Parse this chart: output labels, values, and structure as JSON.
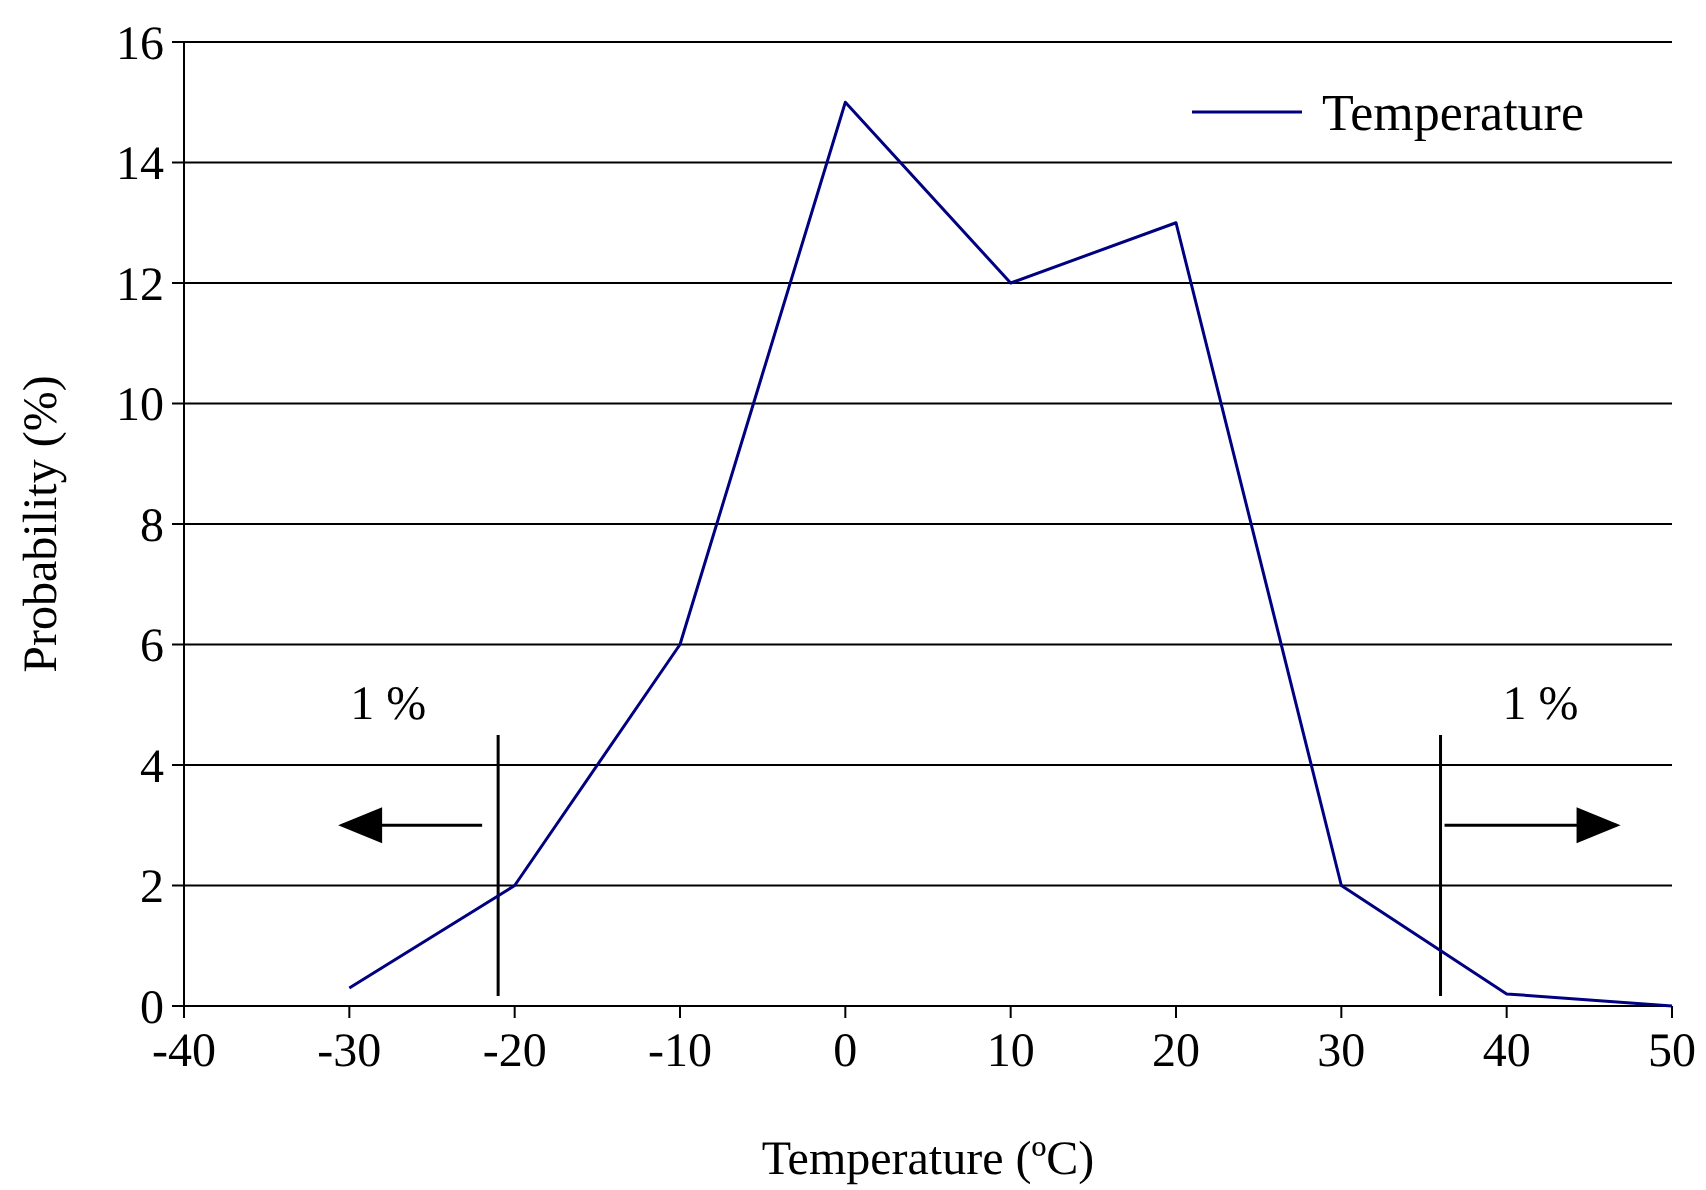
{
  "chart_data": {
    "type": "line",
    "xlabel": "Temperature (ºC)",
    "ylabel": "Probability (%)",
    "x": [
      -30,
      -20,
      -10,
      0,
      10,
      20,
      30,
      40,
      50
    ],
    "series": [
      {
        "name": "Temperature",
        "color": "#000080",
        "values": [
          0.3,
          2,
          6,
          15,
          12,
          13,
          2,
          0.2,
          0
        ]
      }
    ],
    "xlim": [
      -40,
      50
    ],
    "xticks": [
      -40,
      -30,
      -20,
      -10,
      0,
      10,
      20,
      30,
      40,
      50
    ],
    "ylim": [
      0,
      16
    ],
    "yticks": [
      0,
      2,
      4,
      6,
      8,
      10,
      12,
      14,
      16
    ],
    "grid": "y",
    "legend": "top right",
    "marker": "none",
    "line_style": "solid",
    "ref_lines": [
      {
        "axis": "x",
        "value": -21,
        "color": "#000000"
      },
      {
        "axis": "x",
        "value": 36,
        "color": "#000000"
      }
    ],
    "annotations": [
      "1 %",
      "1 %"
    ]
  }
}
